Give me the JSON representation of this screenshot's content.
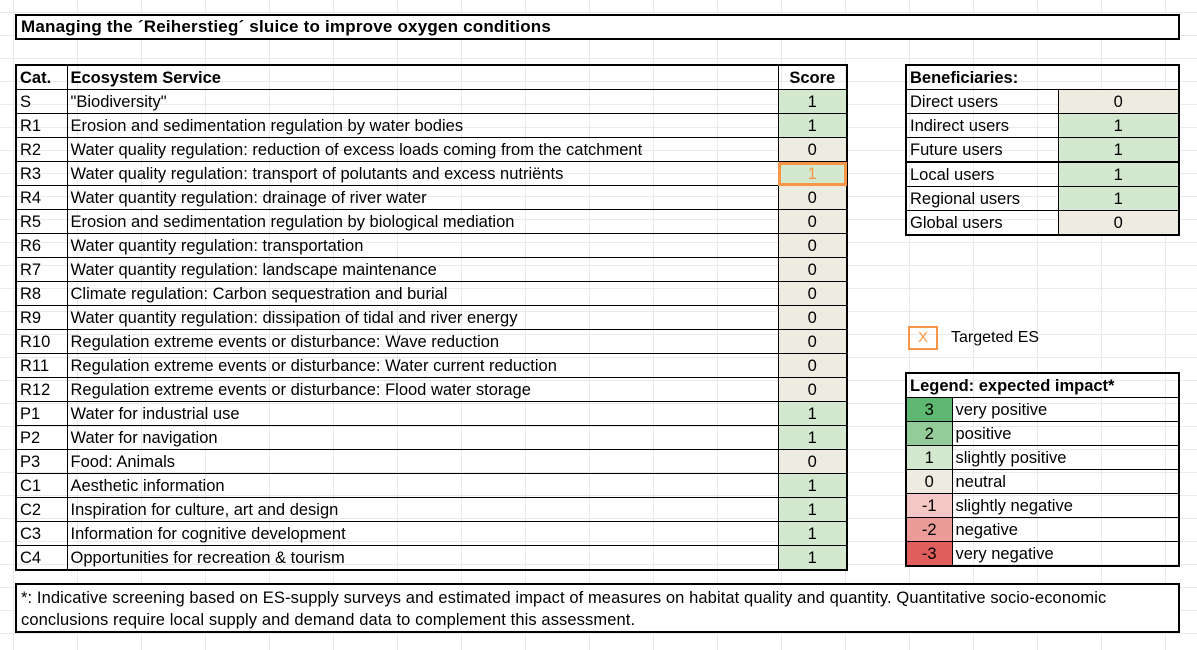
{
  "title": "Managing the ´Reiherstieg´ sluice to improve oxygen conditions",
  "main_table": {
    "headers": {
      "cat": "Cat.",
      "service": "Ecosystem Service",
      "score": "Score"
    },
    "rows": [
      {
        "cat": "S",
        "service": "\"Biodiversity\"",
        "score": "1"
      },
      {
        "cat": "R1",
        "service": "Erosion and sedimentation regulation by water bodies",
        "score": "1"
      },
      {
        "cat": "R2",
        "service": "Water quality regulation: reduction of excess loads coming from the catchment",
        "score": "0"
      },
      {
        "cat": "R3",
        "service": "Water quality regulation: transport of polutants and excess nutriënts",
        "score": "1",
        "targeted": true
      },
      {
        "cat": "R4",
        "service": "Water quantity regulation: drainage of river water",
        "score": "0"
      },
      {
        "cat": "R5",
        "service": "Erosion and sedimentation regulation by biological mediation",
        "score": "0"
      },
      {
        "cat": "R6",
        "service": "Water quantity regulation: transportation",
        "score": "0"
      },
      {
        "cat": "R7",
        "service": "Water quantity regulation: landscape maintenance",
        "score": "0"
      },
      {
        "cat": "R8",
        "service": "Climate regulation: Carbon sequestration and burial",
        "score": "0"
      },
      {
        "cat": "R9",
        "service": "Water quantity regulation: dissipation of tidal and river energy",
        "score": "0"
      },
      {
        "cat": "R10",
        "service": "Regulation extreme events or disturbance: Wave reduction",
        "score": "0"
      },
      {
        "cat": "R11",
        "service": "Regulation extreme events or disturbance: Water current reduction",
        "score": "0"
      },
      {
        "cat": "R12",
        "service": "Regulation extreme events or disturbance: Flood water storage",
        "score": "0"
      },
      {
        "cat": "P1",
        "service": "Water for industrial use",
        "score": "1"
      },
      {
        "cat": "P2",
        "service": "Water for navigation",
        "score": "1"
      },
      {
        "cat": "P3",
        "service": "Food: Animals",
        "score": "0"
      },
      {
        "cat": "C1",
        "service": "Aesthetic information",
        "score": "1"
      },
      {
        "cat": "C2",
        "service": "Inspiration for culture, art and design",
        "score": "1"
      },
      {
        "cat": "C3",
        "service": "Information for cognitive development",
        "score": "1"
      },
      {
        "cat": "C4",
        "service": "Opportunities for recreation & tourism",
        "score": "1"
      }
    ]
  },
  "beneficiaries": {
    "header": "Beneficiaries:",
    "rows": [
      {
        "label": "Direct users",
        "value": "0"
      },
      {
        "label": "Indirect users",
        "value": "1"
      },
      {
        "label": "Future users",
        "value": "1"
      },
      {
        "label": "Local users",
        "value": "1"
      },
      {
        "label": "Regional users",
        "value": "1"
      },
      {
        "label": "Global users",
        "value": "0"
      }
    ]
  },
  "targeted_key": {
    "symbol": "X",
    "label": "Targeted ES"
  },
  "legend": {
    "header": "Legend: expected  impact*",
    "rows": [
      {
        "value": "3",
        "label": "very positive"
      },
      {
        "value": "2",
        "label": "positive"
      },
      {
        "value": "1",
        "label": "slightly positive"
      },
      {
        "value": "0",
        "label": "neutral"
      },
      {
        "value": "-1",
        "label": "slightly negative"
      },
      {
        "value": "-2",
        "label": "negative"
      },
      {
        "value": "-3",
        "label": "very negative"
      }
    ]
  },
  "footnote": "*: Indicative screening based on ES-supply surveys and estimated impact of measures on habitat quality and quantity. Quantitative socio-economic conclusions require local supply and demand data to complement this assessment.",
  "colors": {
    "very_positive": "#5fb872",
    "positive": "#93cc98",
    "slightly_positive": "#d3e8cf",
    "neutral": "#eeece1",
    "slightly_negative": "#f2c7c4",
    "negative": "#ec9c98",
    "very_negative": "#e05f5c",
    "targeted": "#f79646"
  }
}
